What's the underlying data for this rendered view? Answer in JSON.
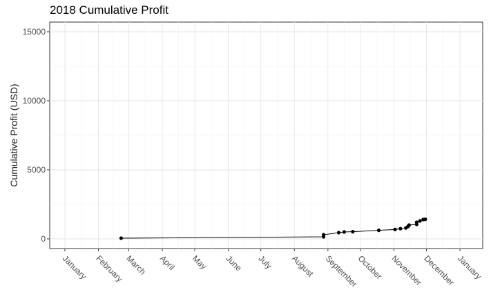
{
  "chart_data": {
    "type": "line",
    "title": "2018 Cumulative Profit",
    "xlabel": "",
    "ylabel": "Cumulative Profit (USD)",
    "x_axis_type": "date",
    "xlim": [
      "2017-12-18",
      "2019-01-22"
    ],
    "ylim": [
      -700,
      15700
    ],
    "y_ticks": [
      0,
      5000,
      10000,
      15000
    ],
    "x_ticks": [
      {
        "date": "2018-01-01",
        "label": "January"
      },
      {
        "date": "2018-02-01",
        "label": "February"
      },
      {
        "date": "2018-03-01",
        "label": "March"
      },
      {
        "date": "2018-04-01",
        "label": "April"
      },
      {
        "date": "2018-05-01",
        "label": "May"
      },
      {
        "date": "2018-06-01",
        "label": "June"
      },
      {
        "date": "2018-07-01",
        "label": "July"
      },
      {
        "date": "2018-08-01",
        "label": "August"
      },
      {
        "date": "2018-09-01",
        "label": "September"
      },
      {
        "date": "2018-10-01",
        "label": "October"
      },
      {
        "date": "2018-11-01",
        "label": "November"
      },
      {
        "date": "2018-12-01",
        "label": "December"
      },
      {
        "date": "2019-01-01",
        "label": "January"
      }
    ],
    "grid": true,
    "series": [
      {
        "color": "#000000",
        "points": [
          {
            "x": "2018-02-22",
            "y": 50
          },
          {
            "x": "2018-08-28",
            "y": 150
          },
          {
            "x": "2018-08-28",
            "y": 300
          },
          {
            "x": "2018-09-11",
            "y": 450
          },
          {
            "x": "2018-09-16",
            "y": 500
          },
          {
            "x": "2018-09-24",
            "y": 520
          },
          {
            "x": "2018-10-18",
            "y": 620
          },
          {
            "x": "2018-11-02",
            "y": 680
          },
          {
            "x": "2018-11-07",
            "y": 740
          },
          {
            "x": "2018-11-12",
            "y": 790
          },
          {
            "x": "2018-11-14",
            "y": 900
          },
          {
            "x": "2018-11-15",
            "y": 1000
          },
          {
            "x": "2018-11-22",
            "y": 1050
          },
          {
            "x": "2018-11-22",
            "y": 1200
          },
          {
            "x": "2018-11-25",
            "y": 1300
          },
          {
            "x": "2018-11-28",
            "y": 1400
          },
          {
            "x": "2018-11-30",
            "y": 1420
          }
        ]
      }
    ]
  }
}
